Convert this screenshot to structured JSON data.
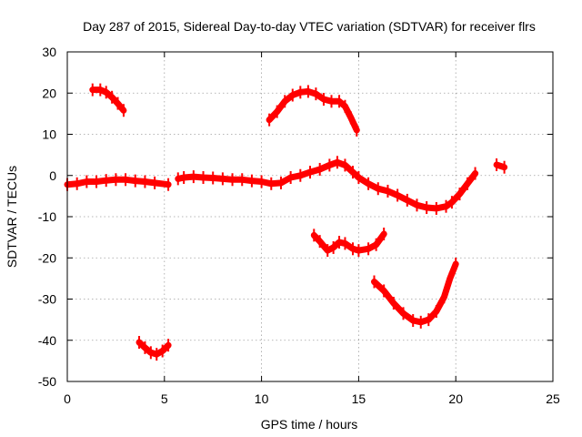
{
  "chart_data": {
    "type": "scatter",
    "title": "Day 287 of 2015, Sidereal Day-to-day VTEC variation (SDTVAR) for receiver flrs",
    "xlabel": "GPS time / hours",
    "ylabel": "SDTVAR / TECUs",
    "xlim": [
      0,
      25
    ],
    "ylim": [
      -50,
      30
    ],
    "xticks": [
      0,
      5,
      10,
      15,
      20,
      25
    ],
    "yticks": [
      -50,
      -40,
      -30,
      -20,
      -10,
      0,
      10,
      20,
      30
    ],
    "grid": true,
    "color": "#ff0000",
    "series": [
      {
        "name": "arc-1",
        "points": [
          [
            1.3,
            20.8
          ],
          [
            1.7,
            20.8
          ],
          [
            2.0,
            20.2
          ],
          [
            2.3,
            19.0
          ],
          [
            2.6,
            17.5
          ],
          [
            2.9,
            15.8
          ]
        ]
      },
      {
        "name": "arc-2",
        "points": [
          [
            3.7,
            -40.5
          ],
          [
            4.0,
            -41.8
          ],
          [
            4.3,
            -43.0
          ],
          [
            4.6,
            -43.4
          ],
          [
            4.9,
            -42.6
          ],
          [
            5.2,
            -41.2
          ]
        ]
      },
      {
        "name": "arc-3",
        "points": [
          [
            0.0,
            -2.2
          ],
          [
            0.5,
            -2.0
          ],
          [
            1.0,
            -1.5
          ],
          [
            1.5,
            -1.5
          ],
          [
            2.0,
            -1.2
          ],
          [
            2.5,
            -1.0
          ],
          [
            3.0,
            -1.0
          ],
          [
            3.5,
            -1.3
          ],
          [
            4.0,
            -1.5
          ],
          [
            4.5,
            -1.8
          ],
          [
            5.2,
            -2.2
          ]
        ]
      },
      {
        "name": "arc-4",
        "points": [
          [
            5.7,
            -0.8
          ],
          [
            6.0,
            -0.5
          ],
          [
            6.5,
            -0.3
          ],
          [
            7.0,
            -0.5
          ],
          [
            7.5,
            -0.6
          ],
          [
            8.0,
            -0.8
          ],
          [
            8.5,
            -1.0
          ],
          [
            9.0,
            -1.0
          ],
          [
            9.5,
            -1.3
          ],
          [
            10.0,
            -1.5
          ],
          [
            10.5,
            -2.0
          ],
          [
            11.0,
            -1.8
          ],
          [
            11.5,
            -0.5
          ],
          [
            12.0,
            0.0
          ],
          [
            12.5,
            0.8
          ],
          [
            13.0,
            1.5
          ],
          [
            13.5,
            2.5
          ],
          [
            13.9,
            3.2
          ],
          [
            14.3,
            2.5
          ],
          [
            14.7,
            0.8
          ],
          [
            15.0,
            -0.5
          ],
          [
            15.5,
            -2.0
          ],
          [
            16.0,
            -3.2
          ],
          [
            16.5,
            -3.8
          ],
          [
            17.0,
            -4.8
          ],
          [
            17.5,
            -6.0
          ],
          [
            18.0,
            -7.2
          ],
          [
            18.5,
            -7.8
          ],
          [
            19.0,
            -8.0
          ],
          [
            19.5,
            -7.5
          ],
          [
            19.8,
            -6.5
          ],
          [
            20.2,
            -4.5
          ],
          [
            20.6,
            -2.0
          ],
          [
            21.0,
            0.5
          ]
        ]
      },
      {
        "name": "arc-5",
        "points": [
          [
            22.1,
            2.6
          ],
          [
            22.5,
            2.0
          ]
        ]
      },
      {
        "name": "arc-6",
        "points": [
          [
            10.4,
            13.5
          ],
          [
            10.8,
            15.5
          ],
          [
            11.2,
            18.0
          ],
          [
            11.6,
            19.5
          ],
          [
            12.0,
            20.2
          ],
          [
            12.4,
            20.4
          ],
          [
            12.8,
            19.8
          ],
          [
            13.2,
            18.5
          ],
          [
            13.6,
            18.0
          ],
          [
            14.0,
            18.0
          ],
          [
            14.3,
            16.8
          ],
          [
            14.6,
            14.0
          ],
          [
            14.9,
            11.0
          ]
        ]
      },
      {
        "name": "arc-7",
        "points": [
          [
            12.7,
            -14.5
          ],
          [
            13.0,
            -16.0
          ],
          [
            13.4,
            -18.2
          ],
          [
            13.7,
            -17.5
          ],
          [
            14.0,
            -16.2
          ],
          [
            14.3,
            -16.5
          ],
          [
            14.7,
            -17.8
          ],
          [
            15.0,
            -18.2
          ],
          [
            15.5,
            -17.8
          ],
          [
            15.9,
            -16.8
          ],
          [
            16.3,
            -14.2
          ]
        ]
      },
      {
        "name": "arc-8",
        "points": [
          [
            15.8,
            -25.8
          ],
          [
            16.3,
            -28.0
          ],
          [
            16.8,
            -31.0
          ],
          [
            17.3,
            -33.5
          ],
          [
            17.8,
            -35.2
          ],
          [
            18.2,
            -35.6
          ],
          [
            18.6,
            -35.0
          ],
          [
            19.0,
            -33.0
          ],
          [
            19.4,
            -29.5
          ],
          [
            19.7,
            -25.0
          ],
          [
            20.0,
            -21.5
          ]
        ]
      }
    ]
  }
}
